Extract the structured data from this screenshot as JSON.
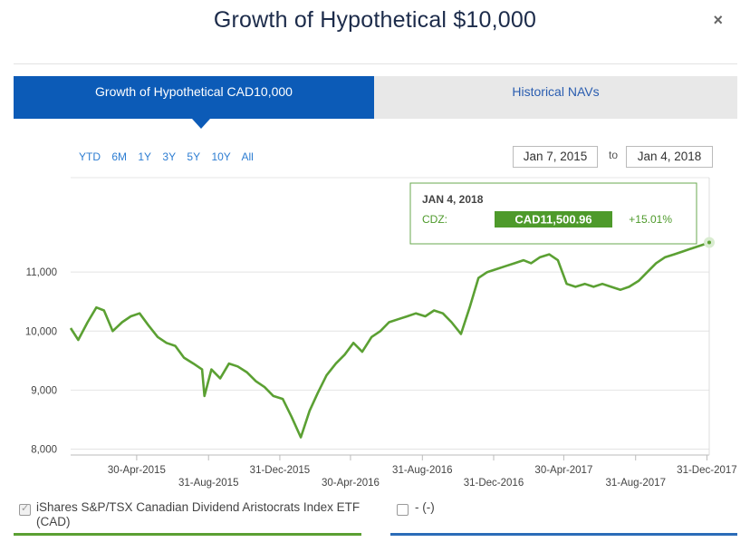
{
  "modal": {
    "title": "Growth of Hypothetical $10,000",
    "close_label": "×"
  },
  "tabs": [
    {
      "label": "Growth of Hypothetical CAD10,000",
      "active": true
    },
    {
      "label": "Historical NAVs",
      "active": false
    }
  ],
  "range_buttons": [
    "YTD",
    "6M",
    "1Y",
    "3Y",
    "5Y",
    "10Y",
    "All"
  ],
  "date_range": {
    "from": "Jan 7, 2015",
    "to_label": "to",
    "to": "Jan 4, 2018"
  },
  "tooltip": {
    "date": "JAN 4, 2018",
    "label": "CDZ:",
    "value": "CAD11,500.96",
    "change": "+15.01%"
  },
  "legend": [
    {
      "label": "iShares S&P/TSX Canadian Dividend Aristocrats Index ETF (CAD)",
      "checked": true,
      "color": "#5ba033"
    },
    {
      "label": "- (-)",
      "checked": false,
      "color": "#2b6cb8"
    }
  ],
  "colors": {
    "accent": "#0c5bb7",
    "series": "#5ba033",
    "tooltip_value_bg": "#4e9a2b"
  },
  "chart_data": {
    "type": "line",
    "title": "",
    "xlabel": "",
    "ylabel": "",
    "ylim": [
      7900,
      12600
    ],
    "xlim": [
      "2015-01-07",
      "2018-01-04"
    ],
    "y_ticks": [
      "8,000",
      "9,000",
      "10,000",
      "11,000"
    ],
    "y_tick_values": [
      8000,
      9000,
      10000,
      11000
    ],
    "x_ticks": [
      "30-Apr-2015",
      "31-Aug-2015",
      "31-Dec-2015",
      "30-Apr-2016",
      "31-Aug-2016",
      "31-Dec-2016",
      "30-Apr-2017",
      "31-Aug-2017",
      "31-Dec-2017"
    ],
    "x_tick_dates": [
      "2015-04-30",
      "2015-08-31",
      "2015-12-31",
      "2016-04-30",
      "2016-08-31",
      "2016-12-31",
      "2017-04-30",
      "2017-08-31",
      "2017-12-31"
    ],
    "grid": true,
    "series": [
      {
        "name": "iShares S&P/TSX Canadian Dividend Aristocrats Index ETF (CAD)",
        "x": [
          "2015-01-07",
          "2015-01-20",
          "2015-02-05",
          "2015-02-20",
          "2015-03-05",
          "2015-03-20",
          "2015-04-05",
          "2015-04-20",
          "2015-05-05",
          "2015-05-20",
          "2015-06-05",
          "2015-06-20",
          "2015-07-05",
          "2015-07-20",
          "2015-08-05",
          "2015-08-20",
          "2015-08-24",
          "2015-09-05",
          "2015-09-20",
          "2015-10-05",
          "2015-10-20",
          "2015-11-05",
          "2015-11-20",
          "2015-12-05",
          "2015-12-20",
          "2016-01-05",
          "2016-01-20",
          "2016-02-05",
          "2016-02-20",
          "2016-03-05",
          "2016-03-20",
          "2016-04-05",
          "2016-04-20",
          "2016-05-05",
          "2016-05-20",
          "2016-06-05",
          "2016-06-20",
          "2016-07-05",
          "2016-07-20",
          "2016-08-05",
          "2016-08-20",
          "2016-09-05",
          "2016-09-20",
          "2016-10-05",
          "2016-10-20",
          "2016-11-05",
          "2016-11-20",
          "2016-12-05",
          "2016-12-20",
          "2017-01-05",
          "2017-01-20",
          "2017-02-05",
          "2017-02-20",
          "2017-03-05",
          "2017-03-20",
          "2017-04-05",
          "2017-04-20",
          "2017-05-05",
          "2017-05-20",
          "2017-06-05",
          "2017-06-20",
          "2017-07-05",
          "2017-07-20",
          "2017-08-05",
          "2017-08-20",
          "2017-09-05",
          "2017-09-20",
          "2017-10-05",
          "2017-10-20",
          "2017-11-05",
          "2017-11-20",
          "2017-12-05",
          "2017-12-20",
          "2018-01-04"
        ],
        "values": [
          10050,
          9850,
          10150,
          10400,
          10350,
          10000,
          10150,
          10250,
          10300,
          10100,
          9900,
          9800,
          9750,
          9550,
          9450,
          9350,
          8900,
          9350,
          9200,
          9450,
          9400,
          9300,
          9150,
          9050,
          8900,
          8850,
          8550,
          8200,
          8650,
          8950,
          9250,
          9450,
          9600,
          9800,
          9650,
          9900,
          10000,
          10150,
          10200,
          10250,
          10300,
          10250,
          10350,
          10300,
          10150,
          9950,
          10400,
          10900,
          11000,
          11050,
          11100,
          11150,
          11200,
          11150,
          11250,
          11300,
          11200,
          10800,
          10750,
          10800,
          10750,
          10800,
          10750,
          10700,
          10750,
          10850,
          11000,
          11150,
          11250,
          11300,
          11350,
          11400,
          11450,
          11501
        ]
      }
    ]
  }
}
